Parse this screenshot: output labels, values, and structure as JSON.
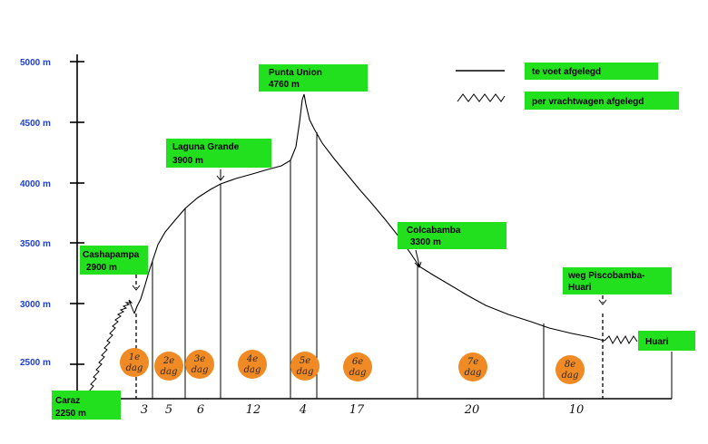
{
  "y_axis": {
    "ticks": [
      {
        "label": "5000 m",
        "value": 5000
      },
      {
        "label": "4500 m",
        "value": 4500
      },
      {
        "label": "4000 m",
        "value": 4000
      },
      {
        "label": "3500 m",
        "value": 3500
      },
      {
        "label": "3000 m",
        "value": 3000
      },
      {
        "label": "2500 m",
        "value": 2500
      }
    ]
  },
  "legend": {
    "walk": "te voet afgelegd",
    "truck": "per vrachtwagen afgelegd"
  },
  "places": {
    "caraz": [
      "Caraz",
      "2250 m"
    ],
    "cashapampa": [
      "Cashapampa",
      "2900 m"
    ],
    "laguna": [
      "Laguna Grande",
      "3900 m"
    ],
    "punta": [
      "Punta Union",
      "4760 m"
    ],
    "colcabamba": [
      "Colcabamba",
      "3300 m"
    ],
    "weg": [
      "weg Piscobamba-",
      "Huari"
    ],
    "huari": [
      "Huari"
    ]
  },
  "days": [
    [
      "1e",
      "dag"
    ],
    [
      "2e",
      "dag"
    ],
    [
      "3e",
      "dag"
    ],
    [
      "4e",
      "dag"
    ],
    [
      "5e",
      "dag"
    ],
    [
      "6e",
      "dag"
    ],
    [
      "7e",
      "dag"
    ],
    [
      "8e",
      "dag"
    ]
  ],
  "distances": [
    "3",
    "5",
    "6",
    "12",
    "4",
    "17",
    "20",
    "10"
  ],
  "colors": {
    "label_bg": "#22e01e",
    "day_circle": "#f08a24",
    "tick_text": "#1f3fd0"
  }
}
